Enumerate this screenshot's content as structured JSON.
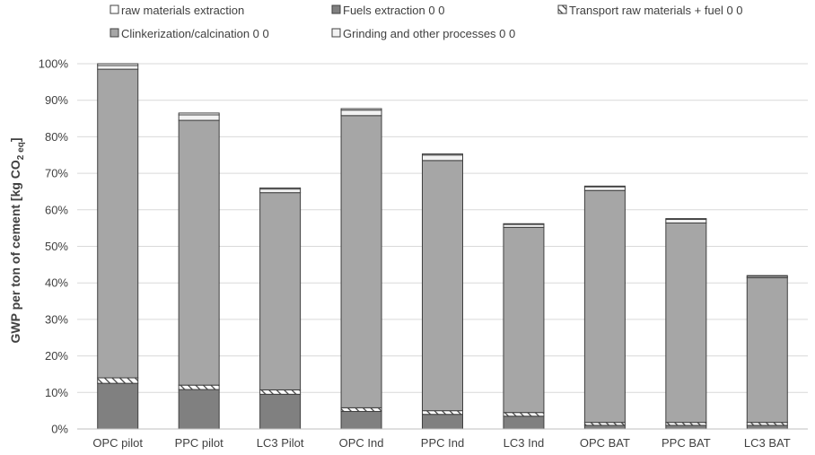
{
  "chart_data": {
    "type": "bar",
    "stacked": true,
    "ylabel_main": "GWP per ton of cement [kg CO",
    "ylabel_sub": "2 eq",
    "ylabel_end": "]",
    "ylim": [
      0,
      100
    ],
    "y_ticks": [
      "0%",
      "10%",
      "20%",
      "30%",
      "40%",
      "50%",
      "60%",
      "70%",
      "80%",
      "90%",
      "100%"
    ],
    "categories": [
      "OPC pilot",
      "PPC pilot",
      "LC3 Pilot",
      "OPC Ind",
      "PPC Ind",
      "LC3 Ind",
      "OPC BAT",
      "PPC BAT",
      "LC3 BAT"
    ],
    "legend_placement": "top",
    "grid": "horizontal",
    "series": [
      {
        "name": "Fuels extraction 0 0",
        "color": "#808080",
        "pattern": "solid",
        "values": [
          12.5,
          10.8,
          9.5,
          4.8,
          4.0,
          3.5,
          1.0,
          1.0,
          1.0
        ]
      },
      {
        "name": "Transport raw materials + fuel 0 0",
        "color": "#ffffff",
        "pattern": "hatch",
        "values": [
          1.5,
          1.2,
          1.2,
          1.0,
          1.0,
          1.0,
          0.8,
          0.8,
          0.8
        ]
      },
      {
        "name": "Clinkerization/calcination 0 0",
        "color": "#a6a6a6",
        "pattern": "solid",
        "values": [
          84.5,
          72.5,
          54.0,
          80.0,
          68.5,
          50.7,
          63.5,
          54.6,
          39.6
        ]
      },
      {
        "name": "Grinding and other processes 0 0",
        "color": "#f2f2f2",
        "pattern": "solid",
        "values": [
          1.0,
          1.5,
          1.0,
          1.5,
          1.5,
          0.8,
          1.0,
          1.0,
          0.4
        ]
      },
      {
        "name": "raw materials extraction",
        "color": "#ffffff",
        "pattern": "solid",
        "values": [
          0.5,
          0.5,
          0.3,
          0.4,
          0.3,
          0.2,
          0.2,
          0.2,
          0.2
        ]
      }
    ],
    "legend_order": [
      4,
      0,
      1,
      2,
      3
    ],
    "colors": {
      "axis": "#bfbfbf",
      "grid": "#d9d9d9",
      "outline": "#404040",
      "text": "#404040"
    }
  }
}
